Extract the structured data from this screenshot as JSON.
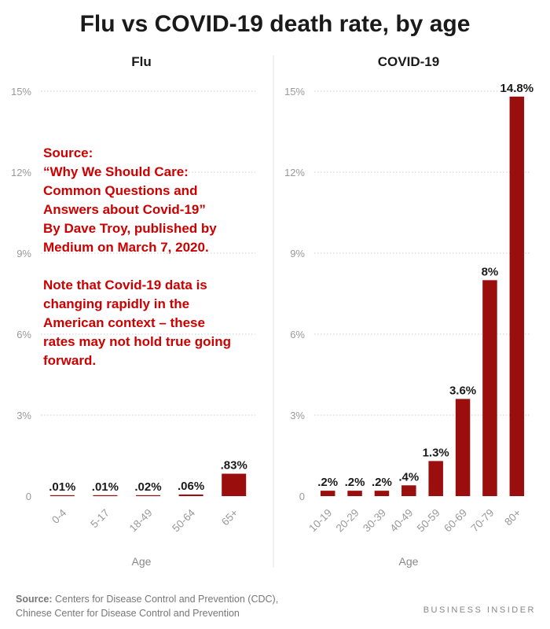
{
  "title": "Flu vs COVID-19 death rate, by age",
  "note": {
    "lines": [
      "Source:",
      "“Why We Should Care:",
      "Common Questions and",
      "Answers about Covid-19”",
      "By Dave Troy, published by",
      "Medium on March 7, 2020."
    ],
    "lines2": [
      "Note that Covid-19 data is",
      "changing rapidly in the",
      "American context – these",
      "rates may not hold true going",
      "forward."
    ]
  },
  "footer": {
    "source_label": "Source:",
    "source_line1": " Centers for Disease Control and Prevention (CDC),",
    "source_line2": "Chinese Center for Disease Control and Prevention",
    "brand": "BUSINESS INSIDER"
  },
  "colors": {
    "bar": "#9b0e0e",
    "grid": "#cccccc",
    "tick": "#999999",
    "label": "#1a1a1a"
  },
  "chart_data": [
    {
      "type": "bar",
      "title": "Flu",
      "xlabel": "Age",
      "ylabel": "",
      "ylim": [
        0,
        15
      ],
      "yticks": [
        0,
        3,
        6,
        9,
        12,
        15
      ],
      "ytick_labels": [
        "0",
        "3%",
        "6%",
        "9%",
        "12%",
        "15%"
      ],
      "categories": [
        "0-4",
        "5-17",
        "18-49",
        "50-64",
        "65+"
      ],
      "values": [
        0.01,
        0.01,
        0.02,
        0.06,
        0.83
      ],
      "data_labels": [
        ".01%",
        ".01%",
        ".02%",
        ".06%",
        ".83%"
      ],
      "grid": true
    },
    {
      "type": "bar",
      "title": "COVID-19",
      "xlabel": "Age",
      "ylabel": "",
      "ylim": [
        0,
        15
      ],
      "yticks": [
        0,
        3,
        6,
        9,
        12,
        15
      ],
      "ytick_labels": [
        "0",
        "3%",
        "6%",
        "9%",
        "12%",
        "15%"
      ],
      "categories": [
        "10-19",
        "20-29",
        "30-39",
        "40-49",
        "50-59",
        "60-69",
        "70-79",
        "80+"
      ],
      "values": [
        0.2,
        0.2,
        0.2,
        0.4,
        1.3,
        3.6,
        8,
        14.8
      ],
      "data_labels": [
        ".2%",
        ".2%",
        ".2%",
        ".4%",
        "1.3%",
        "3.6%",
        "8%",
        "14.8%"
      ],
      "grid": true
    }
  ]
}
